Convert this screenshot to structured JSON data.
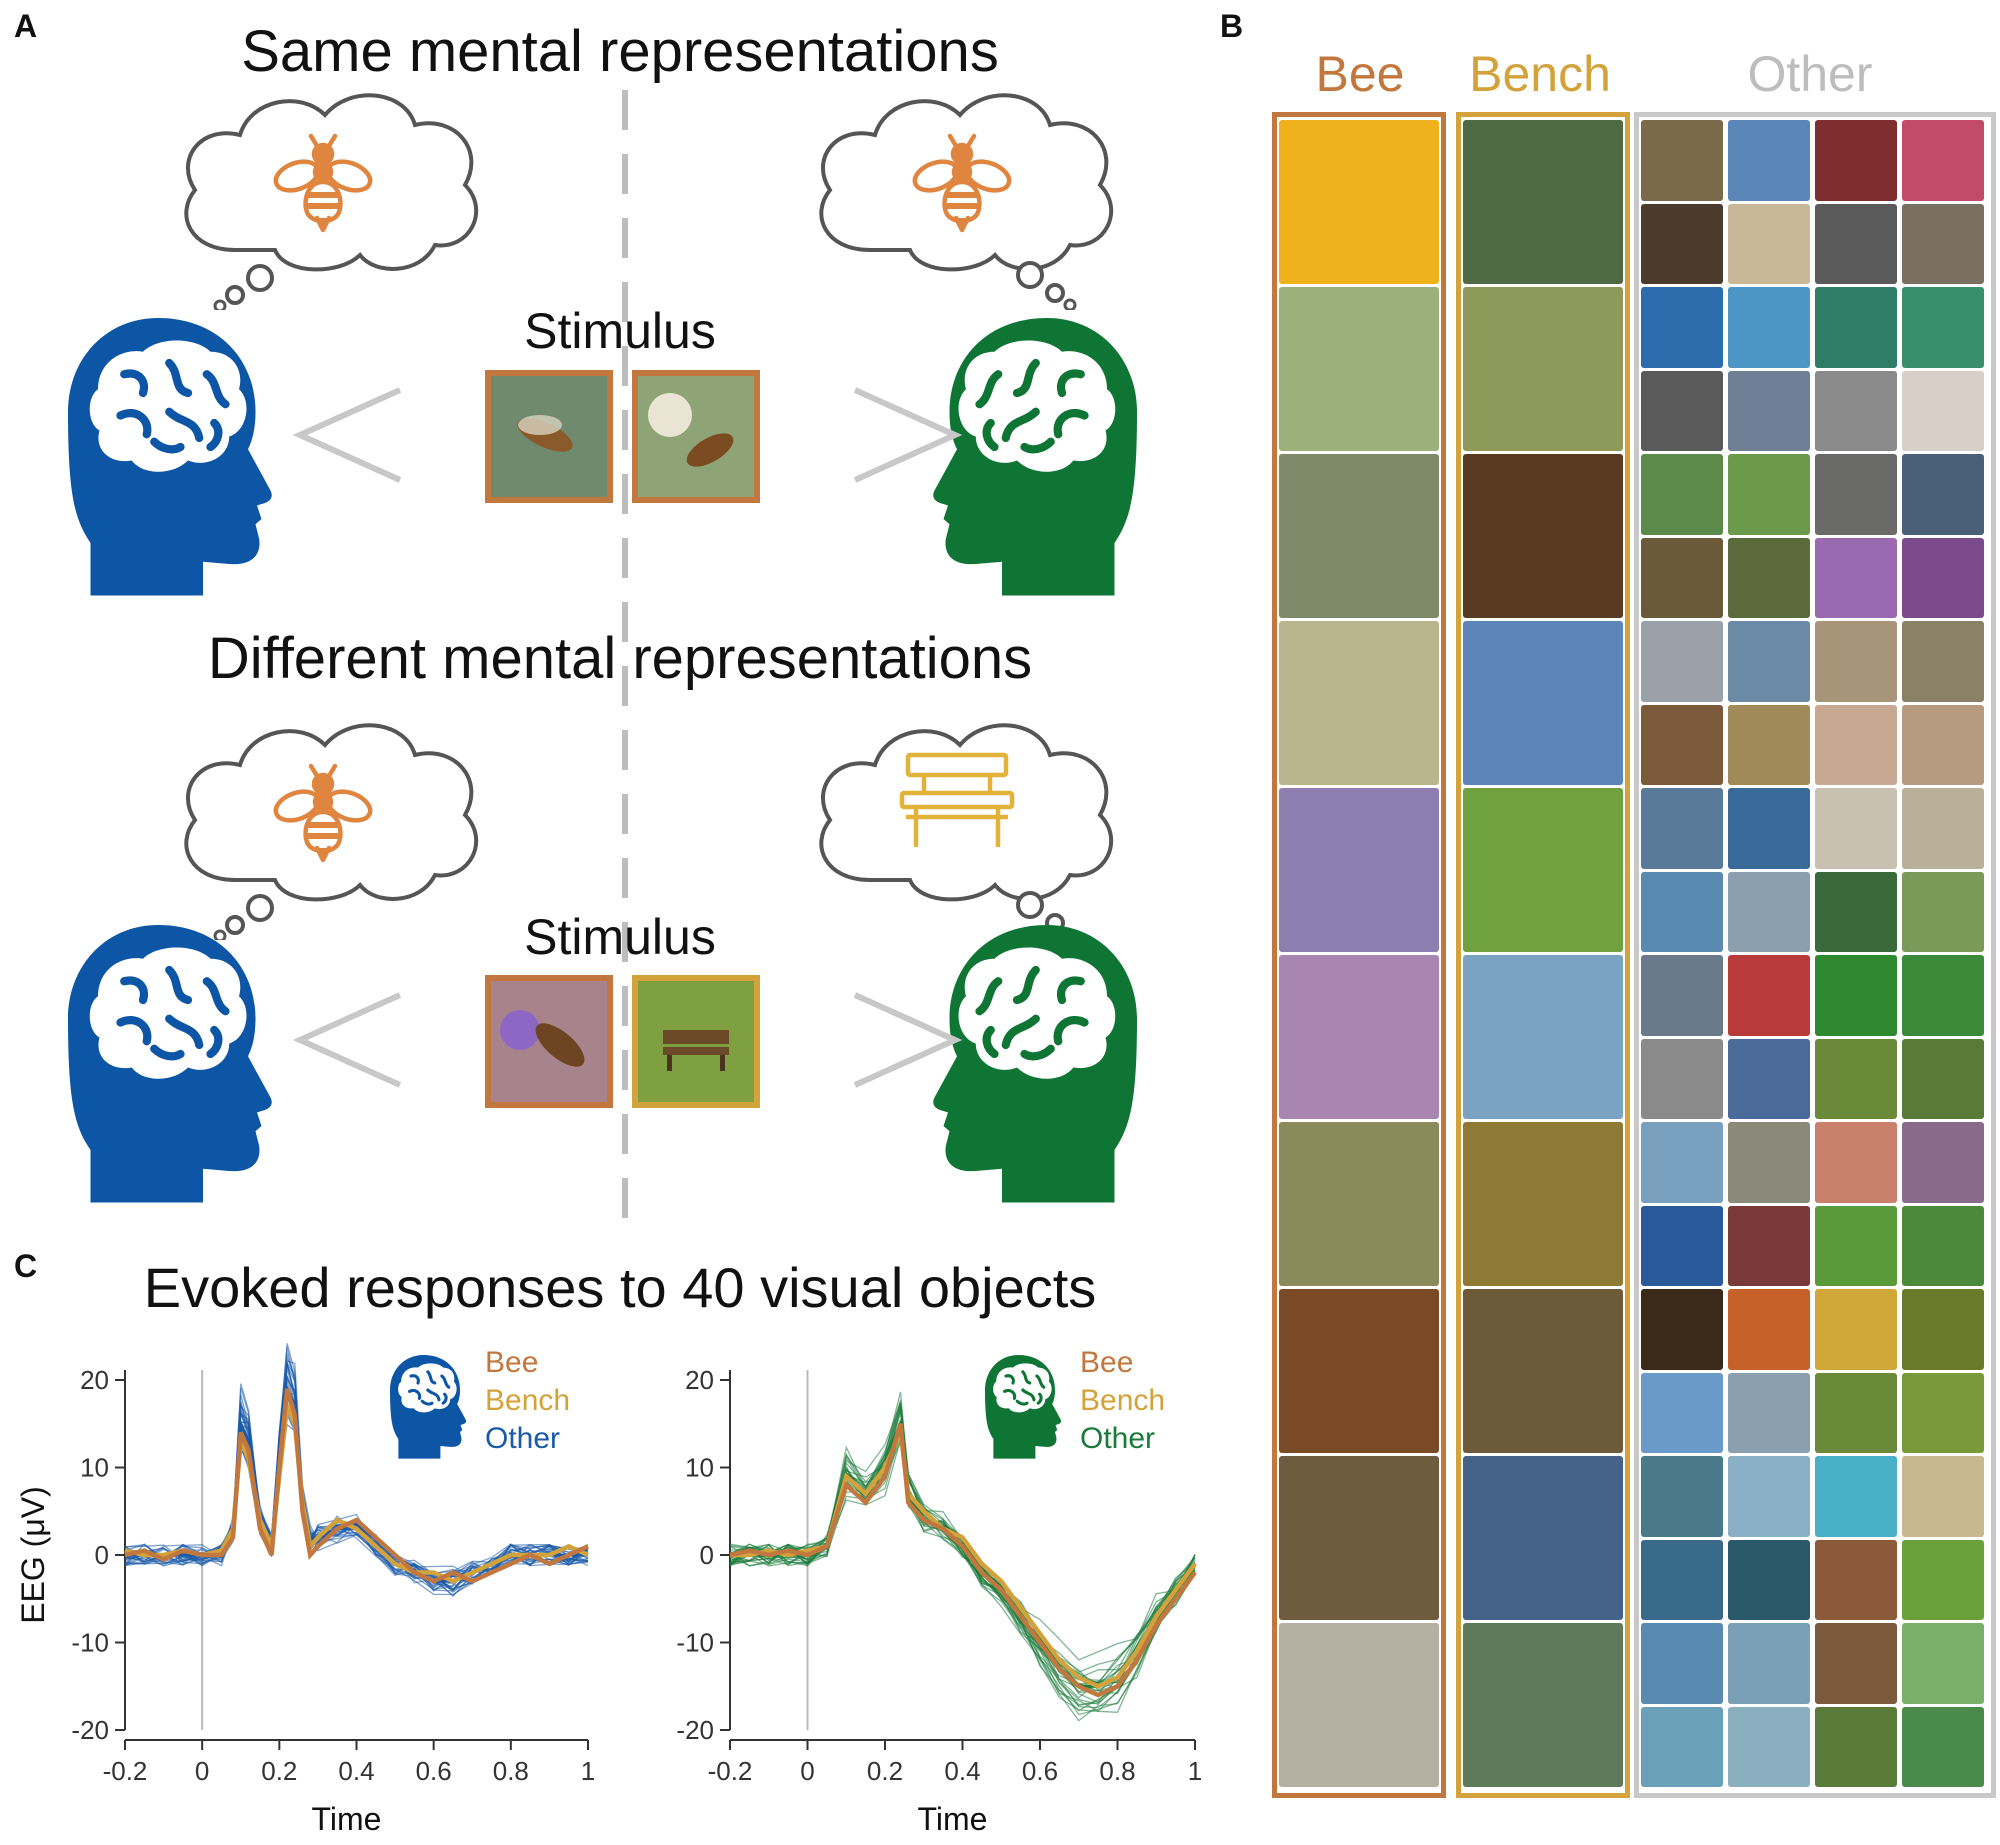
{
  "panel_a": {
    "letter": "A",
    "title_same": "Same mental representations",
    "title_diff": "Different mental representations",
    "stimulus_label": "Stimulus",
    "rows": [
      {
        "left_thought": "bee-icon",
        "right_thought": "bee-icon",
        "stimuli": [
          "bee photo",
          "bee photo"
        ]
      },
      {
        "left_thought": "bee-icon",
        "right_thought": "bench-icon",
        "stimuli": [
          "bee photo",
          "bench photo"
        ]
      }
    ]
  },
  "panel_b": {
    "letter": "B",
    "columns": [
      {
        "label": "Bee",
        "color": "#c2773e"
      },
      {
        "label": "Bench",
        "color": "#d4a23a"
      },
      {
        "label": "Other",
        "color": "#bdbdbd"
      }
    ],
    "rows": 10
  },
  "panel_c": {
    "letter": "C",
    "title": "Evoked responses to 40 visual objects",
    "ylabel": "EEG (μV)",
    "xlabel": "Time",
    "legend": [
      "Bee",
      "Bench",
      "Other"
    ]
  },
  "colors": {
    "blue_head": "#0d56a6",
    "green_head": "#0f7535",
    "bee": "#c2773e",
    "bench": "#d4a23a",
    "other_gray": "#bdbdbd"
  },
  "chart_data": [
    {
      "type": "line",
      "subject": "blue",
      "x": [
        -0.2,
        -0.15,
        -0.1,
        -0.05,
        0,
        0.05,
        0.08,
        0.1,
        0.12,
        0.15,
        0.18,
        0.2,
        0.22,
        0.24,
        0.26,
        0.28,
        0.3,
        0.35,
        0.4,
        0.45,
        0.5,
        0.55,
        0.6,
        0.65,
        0.7,
        0.75,
        0.8,
        0.85,
        0.9,
        0.95,
        1.0
      ],
      "series": [
        {
          "name": "Bee",
          "values": [
            0,
            0.5,
            -0.5,
            0.5,
            0,
            0,
            2,
            14,
            12,
            3,
            0,
            10,
            19,
            16,
            5,
            0,
            1,
            3,
            4,
            2,
            0,
            -2,
            -3,
            -2,
            -3,
            -2,
            -1,
            0,
            -1,
            0,
            1
          ]
        },
        {
          "name": "Bench",
          "values": [
            0.5,
            0,
            0,
            0.5,
            0,
            0.5,
            3,
            13,
            11,
            4,
            1,
            9,
            17,
            15,
            6,
            1,
            2,
            4,
            3,
            1,
            -1,
            -2,
            -2,
            -3,
            -2,
            -1,
            0,
            0,
            0,
            1,
            0
          ]
        },
        {
          "name": "Other",
          "values": [
            0,
            0,
            0,
            0,
            0,
            0,
            3,
            15,
            13,
            4,
            1,
            11,
            19,
            17,
            6,
            2,
            2,
            3,
            3,
            1,
            -1,
            -2,
            -3,
            -3,
            -2,
            -1,
            0,
            0,
            0,
            0,
            0
          ]
        }
      ],
      "xlim": [
        -0.2,
        1.0
      ],
      "ylim": [
        -20,
        20
      ],
      "xticks": [
        "-0.2",
        "0",
        "0.2",
        "0.4",
        "0.6",
        "0.8",
        "1"
      ],
      "yticks": [
        "20",
        "10",
        "0",
        "-10",
        "-20"
      ]
    },
    {
      "type": "line",
      "subject": "green",
      "x": [
        -0.2,
        -0.15,
        -0.1,
        -0.05,
        0,
        0.05,
        0.1,
        0.15,
        0.2,
        0.24,
        0.26,
        0.3,
        0.35,
        0.4,
        0.45,
        0.5,
        0.55,
        0.6,
        0.65,
        0.7,
        0.75,
        0.8,
        0.85,
        0.9,
        0.95,
        1.0
      ],
      "series": [
        {
          "name": "Bee",
          "values": [
            0,
            0.5,
            0,
            0.5,
            0,
            1,
            8,
            6,
            9,
            15,
            6,
            4,
            3,
            1,
            -2,
            -4,
            -7,
            -10,
            -13,
            -15,
            -16,
            -15,
            -12,
            -8,
            -5,
            -2
          ]
        },
        {
          "name": "Bench",
          "values": [
            0,
            0,
            0.5,
            0,
            0.5,
            1,
            9,
            7,
            10,
            14,
            7,
            5,
            3,
            2,
            -1,
            -3,
            -6,
            -9,
            -12,
            -14,
            -15,
            -14,
            -11,
            -7,
            -4,
            -1
          ]
        },
        {
          "name": "Other",
          "values": [
            0,
            0,
            0,
            0,
            0,
            1,
            9,
            7,
            10,
            15,
            7,
            4,
            3,
            1,
            -2,
            -4,
            -7,
            -10,
            -13,
            -15,
            -15,
            -14,
            -11,
            -7,
            -4,
            -1
          ]
        }
      ],
      "xlim": [
        -0.2,
        1.0
      ],
      "ylim": [
        -20,
        20
      ],
      "xticks": [
        "-0.2",
        "0",
        "0.2",
        "0.4",
        "0.6",
        "0.8",
        "1"
      ],
      "yticks": [
        "20",
        "10",
        "0",
        "-10",
        "-20"
      ]
    }
  ]
}
